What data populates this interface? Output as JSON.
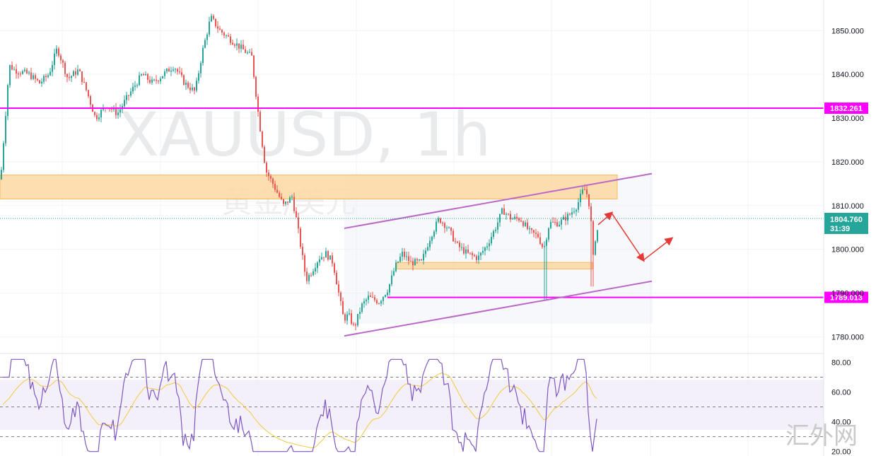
{
  "chart_data": [
    {
      "type": "candlestick",
      "symbol": "XAUUSD",
      "timeframe": "1h",
      "subtitle": "黄金/美元",
      "ylim": [
        1776.5,
        1857
      ],
      "y_ticks": [
        1780,
        1790,
        1800,
        1810,
        1820,
        1830,
        1840,
        1850
      ],
      "y_tick_labels": [
        "1780.000",
        "1790.000",
        "1800.000",
        "1810.000",
        "1820.000",
        "1830.000",
        "1840.000",
        "1850.000"
      ],
      "current_price": {
        "value": 1804.76,
        "label": "1804.760",
        "countdown": "31:39"
      },
      "horizontal_levels": [
        {
          "value": 1832.261,
          "label": "1832.261"
        },
        {
          "value": 1789.013,
          "label": "1789.013"
        }
      ],
      "zones": [
        {
          "from": 1811.5,
          "to": 1817
        },
        {
          "from": 1795.5,
          "to": 1797
        }
      ],
      "price_path_anchors": [
        [
          0,
          1816
        ],
        [
          12,
          1842
        ],
        [
          20,
          1841
        ],
        [
          40,
          1840
        ],
        [
          55,
          1838
        ],
        [
          68,
          1840
        ],
        [
          80,
          1846
        ],
        [
          95,
          1839
        ],
        [
          110,
          1841
        ],
        [
          122,
          1836
        ],
        [
          134,
          1830
        ],
        [
          150,
          1833
        ],
        [
          165,
          1831
        ],
        [
          180,
          1835
        ],
        [
          200,
          1840
        ],
        [
          215,
          1838
        ],
        [
          230,
          1840
        ],
        [
          245,
          1842
        ],
        [
          260,
          1838
        ],
        [
          275,
          1836
        ],
        [
          285,
          1845
        ],
        [
          297,
          1853
        ],
        [
          310,
          1850
        ],
        [
          325,
          1848
        ],
        [
          340,
          1846
        ],
        [
          355,
          1844
        ],
        [
          365,
          1830
        ],
        [
          375,
          1818
        ],
        [
          385,
          1815
        ],
        [
          400,
          1810
        ],
        [
          412,
          1812
        ],
        [
          418,
          1807
        ],
        [
          425,
          1800
        ],
        [
          432,
          1793
        ],
        [
          440,
          1795
        ],
        [
          450,
          1798
        ],
        [
          460,
          1799
        ],
        [
          470,
          1797
        ],
        [
          478,
          1790
        ],
        [
          485,
          1784
        ],
        [
          492,
          1785
        ],
        [
          500,
          1782
        ],
        [
          510,
          1787
        ],
        [
          520,
          1789
        ],
        [
          535,
          1788
        ],
        [
          548,
          1791
        ],
        [
          558,
          1796
        ],
        [
          568,
          1799
        ],
        [
          580,
          1797
        ],
        [
          595,
          1797
        ],
        [
          608,
          1803
        ],
        [
          620,
          1807
        ],
        [
          632,
          1805
        ],
        [
          645,
          1801
        ],
        [
          660,
          1799
        ],
        [
          675,
          1798
        ],
        [
          688,
          1801
        ],
        [
          700,
          1805
        ],
        [
          710,
          1809
        ],
        [
          722,
          1807
        ],
        [
          735,
          1807
        ],
        [
          748,
          1804
        ],
        [
          760,
          1803
        ],
        [
          768,
          1800
        ],
        [
          776,
          1806
        ],
        [
          790,
          1806
        ],
        [
          805,
          1808
        ],
        [
          815,
          1810
        ],
        [
          825,
          1814
        ],
        [
          831,
          1812
        ],
        [
          835,
          1806
        ],
        [
          838,
          1798
        ],
        [
          842,
          1804
        ],
        [
          846,
          1804.8
        ]
      ],
      "rsi": {
        "ylim": [
          17,
          85
        ],
        "levels": [
          70,
          50,
          30
        ],
        "tick_labels": [
          "80.00",
          "60.00",
          "40.00",
          "20.00"
        ],
        "ticks": [
          80,
          60,
          40,
          20
        ]
      },
      "channel": {
        "upper": [
          [
            487,
            1804.8
          ],
          [
            922,
            1817.3
          ]
        ],
        "lower": [
          [
            487,
            1780.2
          ],
          [
            922,
            1792.7
          ]
        ]
      },
      "projection_arrows": [
        [
          846,
          1805.6
        ],
        [
          865,
          1808.3
        ],
        [
          910,
          1797.5
        ],
        [
          950,
          1802.5
        ]
      ]
    }
  ],
  "colors": {
    "up": "#26a69a",
    "down": "#ef5350",
    "level": "#ff00ff",
    "zone_fill": "#fdd9a4",
    "zone_border": "#f5b041",
    "channel": "#ba68c8",
    "arrow": "#e53935",
    "rsi_line": "#7e57c2",
    "rsi_ma": "#f5c842",
    "current_tag": "#26a69a"
  },
  "site_watermark": "汇外网"
}
